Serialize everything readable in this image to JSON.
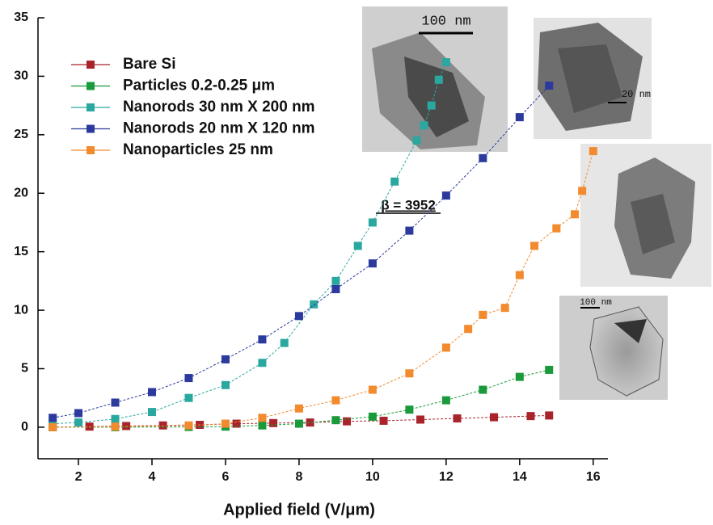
{
  "chart_data": {
    "type": "scatter",
    "xlabel": "Applied field (V/μm)",
    "xlim": [
      0.9,
      16.4
    ],
    "ylim": [
      -2.7,
      35
    ],
    "xticks": [
      2,
      4,
      6,
      8,
      10,
      12,
      14,
      16
    ],
    "yticks": [
      0,
      5,
      10,
      15,
      20,
      25,
      30,
      35
    ],
    "legend": "upper left",
    "annotation": "β = 3952",
    "insets": [
      {
        "label": "100 nm"
      },
      {
        "label": "20 nm"
      },
      {
        "label": "100 nm"
      }
    ],
    "series": [
      {
        "name": "Bare Si",
        "color": "#a8242a",
        "x": [
          1.3,
          2.3,
          3.3,
          4.3,
          5.3,
          6.3,
          7.3,
          8.3,
          9.3,
          10.3,
          11.3,
          12.3,
          13.3,
          14.3,
          14.8
        ],
        "values": [
          0,
          0.05,
          0.1,
          0.15,
          0.2,
          0.3,
          0.35,
          0.4,
          0.5,
          0.55,
          0.65,
          0.75,
          0.85,
          0.95,
          1.0
        ]
      },
      {
        "name": "Particles 0.2-0.25 μm",
        "color": "#1a9a3a",
        "x": [
          1.3,
          3,
          5,
          6,
          7,
          8,
          9,
          10,
          11,
          12,
          13,
          14,
          14.8
        ],
        "values": [
          0,
          0,
          0.02,
          0.05,
          0.15,
          0.3,
          0.6,
          0.9,
          1.5,
          2.3,
          3.2,
          4.3,
          4.9
        ]
      },
      {
        "name": "Nanorods 30 nm X 200 nm",
        "color": "#2aa8a0",
        "x": [
          1.3,
          2,
          3,
          4,
          5,
          6,
          7,
          7.6,
          8.4,
          9,
          9.6,
          10,
          10.6,
          11.2,
          11.4,
          11.6,
          11.8,
          12
        ],
        "values": [
          0.3,
          0.4,
          0.7,
          1.3,
          2.5,
          3.6,
          5.5,
          7.2,
          10.5,
          12.5,
          15.5,
          17.5,
          21,
          24.5,
          25.8,
          27.5,
          29.7,
          31.2
        ]
      },
      {
        "name": "Nanorods 20 nm X 120 nm",
        "color": "#2b3a9c",
        "x": [
          1.3,
          2,
          3,
          4,
          5,
          6,
          7,
          8,
          9,
          10,
          11,
          12,
          13,
          14,
          14.8
        ],
        "values": [
          0.8,
          1.2,
          2.1,
          3.0,
          4.2,
          5.8,
          7.5,
          9.5,
          11.8,
          14.0,
          16.8,
          19.8,
          23.0,
          26.5,
          29.2
        ]
      },
      {
        "name": "Nanoparticles 25 nm",
        "color": "#f28a2e",
        "x": [
          1.3,
          3,
          5,
          6,
          7,
          8,
          9,
          10,
          11,
          12,
          12.6,
          13,
          13.6,
          14,
          14.4,
          15,
          15.5,
          15.7,
          16
        ],
        "values": [
          0,
          0.05,
          0.15,
          0.3,
          0.8,
          1.6,
          2.3,
          3.2,
          4.6,
          6.8,
          8.4,
          9.6,
          10.2,
          13,
          15.5,
          17,
          18.2,
          20.2,
          23.6
        ]
      }
    ]
  }
}
